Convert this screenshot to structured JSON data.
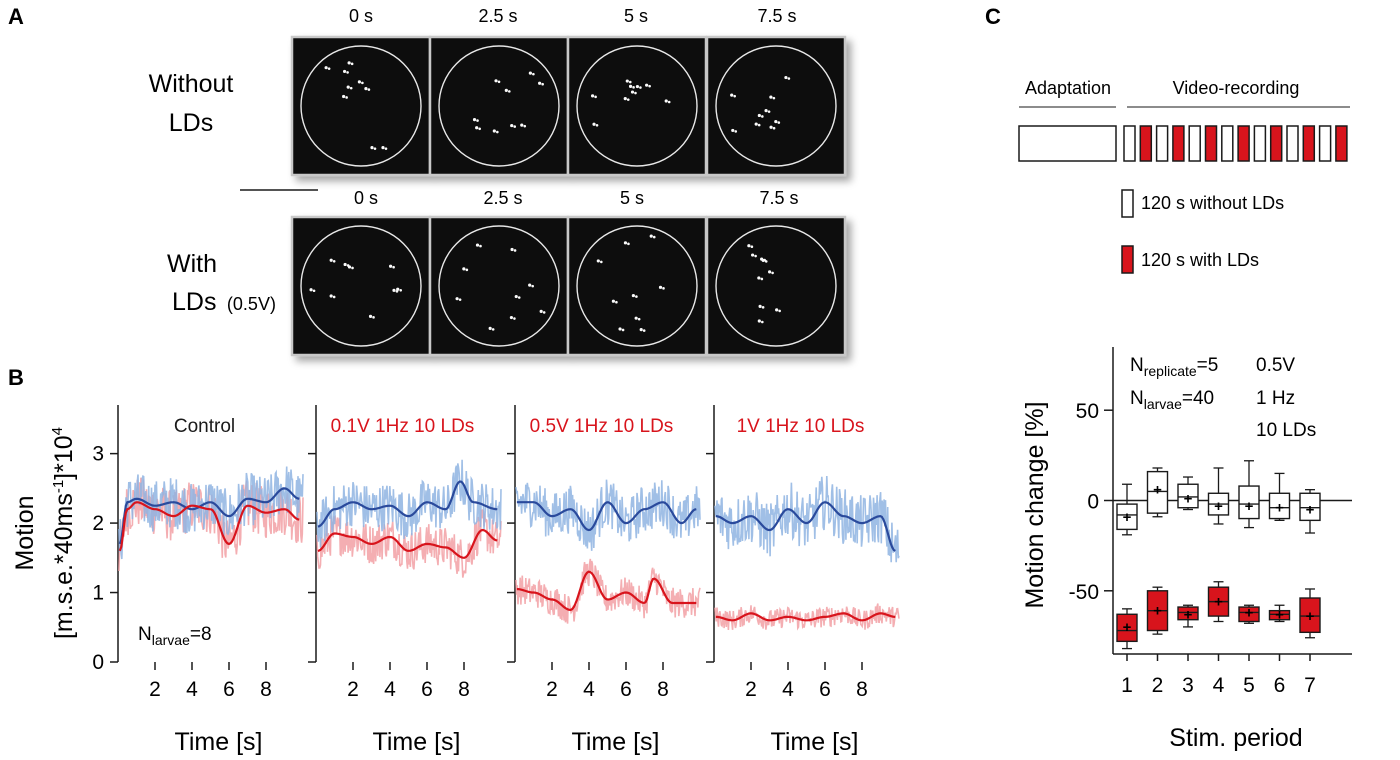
{
  "panels": {
    "A": {
      "label": "A",
      "rows": [
        {
          "label_lines": [
            "Without",
            "LDs"
          ],
          "voltage": "",
          "times": [
            "0 s",
            "2.5 s",
            "5 s",
            "7.5 s"
          ]
        },
        {
          "label_lines": [
            "With",
            "LDs"
          ],
          "voltage": "(0.5V)",
          "times": [
            "0 s",
            "2.5 s",
            "5 s",
            "7.5 s"
          ]
        }
      ]
    },
    "B": {
      "label": "B"
    },
    "C": {
      "label": "C",
      "adaptation": "Adaptation",
      "video": "Video-recording",
      "legend_without": "120 s without LDs",
      "legend_with": "120 s with LDs"
    }
  },
  "colors": {
    "red": "#d8141c",
    "red_light": "#f2a0a4",
    "blue": "#2a4a9c",
    "blue_light": "#8fb4e2",
    "frame_bg": "#0a0a0a",
    "frame_border": "#c8c8c8"
  },
  "chart_data": [
    {
      "type": "line",
      "panel": "B",
      "ylabel_lines": [
        "Motion",
        "[m.s.e.*40ms",
        "-1",
        "]*10",
        "4",
        ""
      ],
      "xlabel": "Time [s]",
      "xlim": [
        0,
        10
      ],
      "ylim": [
        0,
        3.7
      ],
      "xticks": [
        2,
        4,
        6,
        8
      ],
      "yticks": [
        0,
        1,
        2,
        3
      ],
      "annotation": {
        "prefix": "N",
        "sub": "larvae",
        "suffix": "=8"
      },
      "subplots": [
        {
          "title": "Control",
          "title_color": "black",
          "series": [
            {
              "name": "without LDs",
              "color": "blue",
              "mean": 2.3,
              "trend": 0.0,
              "noise": 0.38,
              "smooth_points": [
                [
                  0.1,
                  1.7
                ],
                [
                  0.5,
                  2.3
                ],
                [
                  1,
                  2.35
                ],
                [
                  2,
                  2.25
                ],
                [
                  3,
                  2.3
                ],
                [
                  4,
                  2.2
                ],
                [
                  5,
                  2.3
                ],
                [
                  6,
                  2.1
                ],
                [
                  7,
                  2.35
                ],
                [
                  8,
                  2.3
                ],
                [
                  9,
                  2.5
                ],
                [
                  9.8,
                  2.35
                ]
              ]
            },
            {
              "name": "with LDs",
              "color": "red",
              "mean": 2.2,
              "trend": 0.0,
              "noise": 0.38,
              "smooth_points": [
                [
                  0.1,
                  1.6
                ],
                [
                  0.5,
                  2.2
                ],
                [
                  1,
                  2.3
                ],
                [
                  2,
                  2.2
                ],
                [
                  3,
                  2.1
                ],
                [
                  4,
                  2.25
                ],
                [
                  5,
                  2.2
                ],
                [
                  6,
                  1.7
                ],
                [
                  7,
                  2.25
                ],
                [
                  8,
                  2.15
                ],
                [
                  9,
                  2.2
                ],
                [
                  9.8,
                  2.05
                ]
              ]
            }
          ]
        },
        {
          "title": "0.1V 1Hz 10 LDs",
          "title_color": "red",
          "series": [
            {
              "name": "without LDs",
              "color": "blue",
              "mean": 2.2,
              "trend": 0.0,
              "noise": 0.35,
              "smooth_points": [
                [
                  0.1,
                  1.95
                ],
                [
                  1,
                  2.2
                ],
                [
                  2,
                  2.3
                ],
                [
                  3,
                  2.2
                ],
                [
                  4,
                  2.25
                ],
                [
                  5,
                  2.1
                ],
                [
                  6,
                  2.3
                ],
                [
                  7,
                  2.2
                ],
                [
                  7.8,
                  2.6
                ],
                [
                  8.5,
                  2.3
                ],
                [
                  9.8,
                  2.2
                ]
              ]
            },
            {
              "name": "with LDs",
              "color": "red",
              "mean": 1.7,
              "trend": -0.03,
              "noise": 0.3,
              "smooth_points": [
                [
                  0.1,
                  1.6
                ],
                [
                  1,
                  1.85
                ],
                [
                  2,
                  1.8
                ],
                [
                  3,
                  1.7
                ],
                [
                  4,
                  1.8
                ],
                [
                  5,
                  1.6
                ],
                [
                  6,
                  1.7
                ],
                [
                  7,
                  1.65
                ],
                [
                  8,
                  1.5
                ],
                [
                  9,
                  1.9
                ],
                [
                  9.8,
                  1.75
                ]
              ]
            }
          ]
        },
        {
          "title": "0.5V 1Hz 10 LDs",
          "title_color": "red",
          "series": [
            {
              "name": "without LDs",
              "color": "blue",
              "mean": 2.1,
              "trend": 0.0,
              "noise": 0.35,
              "smooth_points": [
                [
                  0.1,
                  2.3
                ],
                [
                  1,
                  2.3
                ],
                [
                  2,
                  2.1
                ],
                [
                  3,
                  2.2
                ],
                [
                  4,
                  1.9
                ],
                [
                  5,
                  2.3
                ],
                [
                  6,
                  2.0
                ],
                [
                  7,
                  2.2
                ],
                [
                  8,
                  2.3
                ],
                [
                  9,
                  2.0
                ],
                [
                  9.8,
                  2.2
                ]
              ]
            },
            {
              "name": "with LDs",
              "color": "red",
              "mean": 1.0,
              "trend": -0.01,
              "noise": 0.22,
              "smooth_points": [
                [
                  0.1,
                  1.05
                ],
                [
                  1,
                  1.0
                ],
                [
                  2,
                  0.9
                ],
                [
                  3,
                  0.75
                ],
                [
                  4,
                  1.3
                ],
                [
                  5,
                  0.9
                ],
                [
                  6,
                  1.0
                ],
                [
                  7,
                  0.85
                ],
                [
                  7.5,
                  1.2
                ],
                [
                  8.5,
                  0.85
                ],
                [
                  9.8,
                  0.85
                ]
              ]
            }
          ]
        },
        {
          "title": "1V 1Hz 10 LDs",
          "title_color": "red",
          "series": [
            {
              "name": "without LDs",
              "color": "blue",
              "mean": 2.1,
              "trend": -0.02,
              "noise": 0.4,
              "smooth_points": [
                [
                  0.1,
                  2.1
                ],
                [
                  1,
                  2.0
                ],
                [
                  2,
                  2.1
                ],
                [
                  3,
                  1.9
                ],
                [
                  4,
                  2.2
                ],
                [
                  5,
                  2.0
                ],
                [
                  6,
                  2.3
                ],
                [
                  7,
                  2.1
                ],
                [
                  8,
                  2.0
                ],
                [
                  9,
                  2.1
                ],
                [
                  9.8,
                  1.6
                ]
              ]
            },
            {
              "name": "with LDs",
              "color": "red",
              "mean": 0.65,
              "trend": 0.0,
              "noise": 0.15,
              "smooth_points": [
                [
                  0.1,
                  0.65
                ],
                [
                  1,
                  0.6
                ],
                [
                  2,
                  0.7
                ],
                [
                  3,
                  0.6
                ],
                [
                  4,
                  0.65
                ],
                [
                  5,
                  0.6
                ],
                [
                  6,
                  0.65
                ],
                [
                  7,
                  0.7
                ],
                [
                  8,
                  0.6
                ],
                [
                  9,
                  0.7
                ],
                [
                  9.8,
                  0.65
                ]
              ]
            }
          ]
        }
      ]
    },
    {
      "type": "box",
      "panel": "C",
      "ylabel": "Motion change [%]",
      "xlabel": "Stim. period",
      "ylim": [
        -85,
        85
      ],
      "yticks": [
        50,
        0,
        -50
      ],
      "yticklabels": [
        "50",
        "0",
        "-50"
      ],
      "categories": [
        "1",
        "2",
        "3",
        "4",
        "5",
        "6",
        "7"
      ],
      "annotations": [
        {
          "prefix": "N",
          "sub": "replicate",
          "suffix": "=5"
        },
        {
          "prefix": "N",
          "sub": "larvae",
          "suffix": "=40"
        }
      ],
      "conditions": [
        "0.5V",
        "1 Hz",
        "10  LDs"
      ],
      "series": [
        {
          "name": "without LDs",
          "fill": "white",
          "boxes": [
            {
              "min": -19,
              "q1": -16,
              "median": -8,
              "q3": -2,
              "max": 9,
              "mean": -9
            },
            {
              "min": -9,
              "q1": -7,
              "median": 5,
              "q3": 16,
              "max": 18,
              "mean": 6
            },
            {
              "min": -5,
              "q1": -4,
              "median": 2,
              "q3": 9,
              "max": 13,
              "mean": 1
            },
            {
              "min": -13,
              "q1": -8,
              "median": -2,
              "q3": 4,
              "max": 18,
              "mean": -3
            },
            {
              "min": -15,
              "q1": -10,
              "median": -2,
              "q3": 8,
              "max": 22,
              "mean": -3
            },
            {
              "min": -11,
              "q1": -10,
              "median": -4,
              "q3": 4,
              "max": 15,
              "mean": -4
            },
            {
              "min": -18,
              "q1": -11,
              "median": -4,
              "q3": 4,
              "max": 6,
              "mean": -5
            }
          ]
        },
        {
          "name": "with LDs",
          "fill": "red",
          "boxes": [
            {
              "min": -82,
              "q1": -78,
              "median": -72,
              "q3": -63,
              "max": -60,
              "mean": -70
            },
            {
              "min": -74,
              "q1": -72,
              "median": -61,
              "q3": -50,
              "max": -48,
              "mean": -61
            },
            {
              "min": -70,
              "q1": -66,
              "median": -62,
              "q3": -59,
              "max": -58,
              "mean": -63
            },
            {
              "min": -67,
              "q1": -64,
              "median": -56,
              "q3": -48,
              "max": -45,
              "mean": -56
            },
            {
              "min": -68,
              "q1": -67,
              "median": -62,
              "q3": -59,
              "max": -58,
              "mean": -62
            },
            {
              "min": -67,
              "q1": -66,
              "median": -63,
              "q3": -61,
              "max": -58,
              "mean": -63
            },
            {
              "min": -76,
              "q1": -73,
              "median": -64,
              "q3": -54,
              "max": -49,
              "mean": -64
            }
          ]
        }
      ]
    }
  ]
}
